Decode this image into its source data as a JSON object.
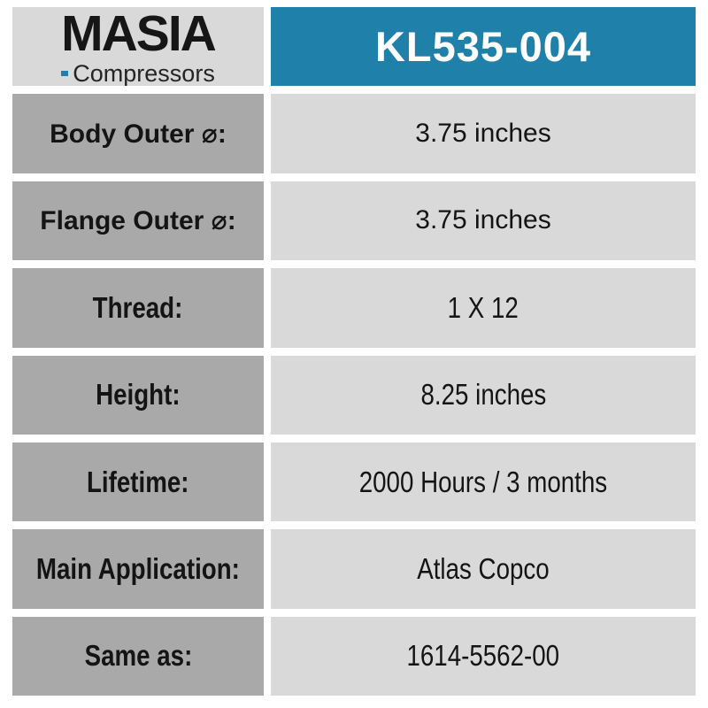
{
  "logo": {
    "brand": "MASIA",
    "subtitle": "Compressors"
  },
  "header": {
    "part_number": "KL535-004"
  },
  "rows": [
    {
      "label": "Body Outer ⌀:",
      "value": "3.75 inches"
    },
    {
      "label": "Flange Outer ⌀:",
      "value": "3.75 inches"
    },
    {
      "label": "Thread:",
      "value": "1 X 12"
    },
    {
      "label": "Height:",
      "value": "8.25 inches"
    },
    {
      "label": "Lifetime:",
      "value": "2000 Hours / 3 months"
    },
    {
      "label": "Main Application:",
      "value": "Atlas Copco"
    },
    {
      "label": "Same as:",
      "value": "1614-5562-00"
    }
  ],
  "colors": {
    "accent_blue": "#1F81A9",
    "label_gray": "#A9A9A9",
    "value_gray": "#D9D9D9",
    "text_black": "#141414",
    "background": "#FFFFFF"
  }
}
